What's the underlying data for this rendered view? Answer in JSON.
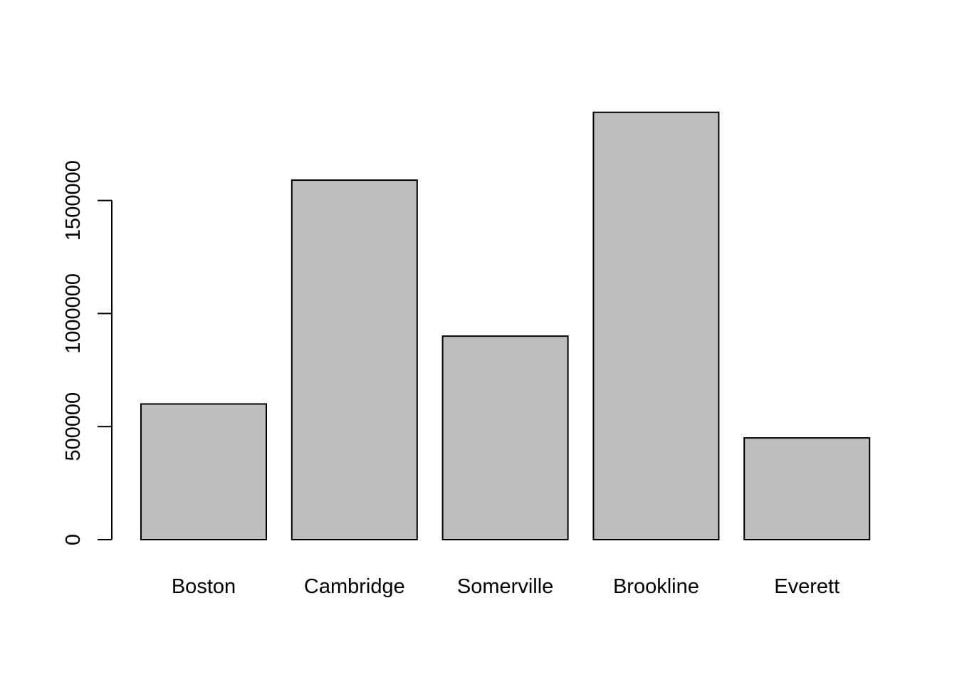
{
  "chart_data": {
    "type": "bar",
    "categories": [
      "Boston",
      "Cambridge",
      "Somerville",
      "Brookline",
      "Everett"
    ],
    "values": [
      600000,
      1590000,
      900000,
      1890000,
      450000
    ],
    "title": "",
    "xlabel": "",
    "ylabel": "",
    "ylim": [
      0,
      1890000
    ],
    "y_ticks": [
      0,
      500000,
      1000000,
      1500000
    ],
    "y_tick_labels": [
      "0",
      "500000",
      "1000000",
      "1500000"
    ],
    "grid": false,
    "legend": "none",
    "colors": {
      "bar_fill": "#bebebe",
      "bar_stroke": "#000000",
      "axis": "#000000",
      "background": "#ffffff"
    }
  }
}
